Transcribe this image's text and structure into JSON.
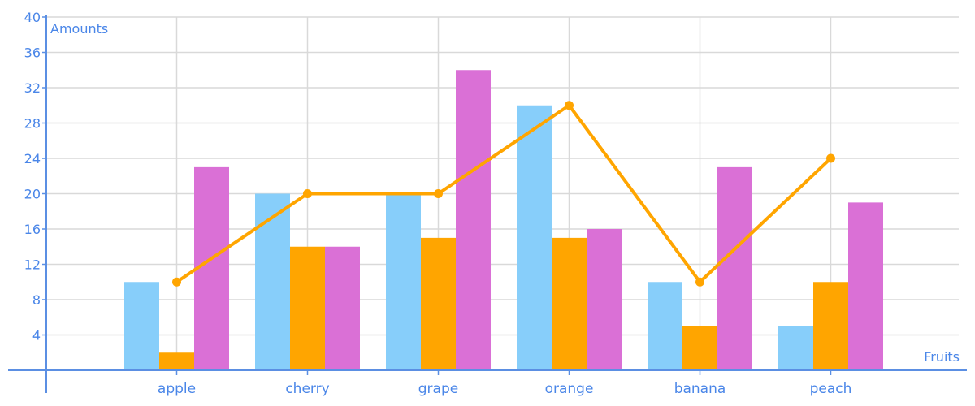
{
  "chart_data": {
    "type": "bar",
    "xlabel": "Fruits",
    "ylabel": "Amounts",
    "categories": [
      "apple",
      "cherry",
      "grape",
      "orange",
      "banana",
      "peach"
    ],
    "ylim": [
      0,
      40
    ],
    "yticks": [
      4,
      8,
      12,
      16,
      20,
      24,
      28,
      32,
      36,
      40
    ],
    "grid": true,
    "series": [
      {
        "kind": "bar",
        "color": "#87CEFA",
        "values": [
          10,
          20,
          20,
          30,
          10,
          5
        ]
      },
      {
        "kind": "bar",
        "color": "#FFA500",
        "values": [
          2,
          14,
          15,
          15,
          5,
          10
        ]
      },
      {
        "kind": "bar",
        "color": "#DA70D6",
        "values": [
          23,
          14,
          34,
          16,
          23,
          19
        ]
      },
      {
        "kind": "line",
        "color": "#FFA500",
        "values": [
          10,
          20,
          20,
          30,
          10,
          24
        ]
      }
    ]
  },
  "colors": {
    "axis": "#5B8FE3",
    "grid": "#D9D9D9",
    "text": "#4A86E8"
  }
}
